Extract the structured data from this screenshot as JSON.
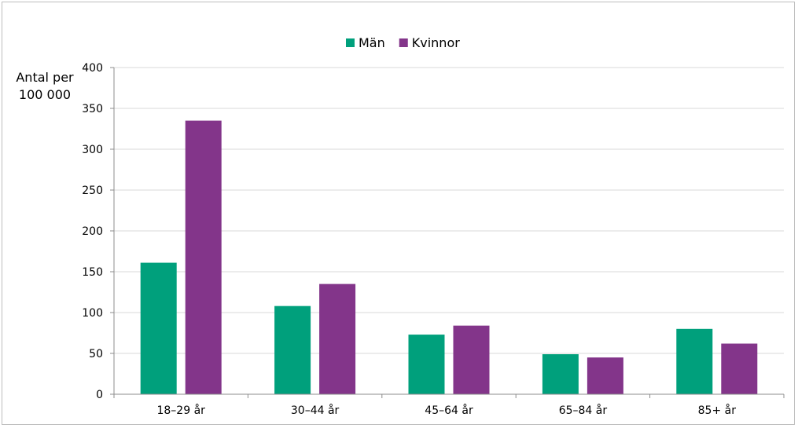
{
  "chart_data": {
    "type": "bar",
    "categories": [
      "18–29 år",
      "30–44 år",
      "45–64 år",
      "65–84 år",
      "85+ år"
    ],
    "series": [
      {
        "name": "Män",
        "color": "#00a07c",
        "values": [
          161,
          108,
          73,
          49,
          80
        ]
      },
      {
        "name": "Kvinnor",
        "color": "#83358a",
        "values": [
          335,
          135,
          84,
          45,
          62
        ]
      }
    ],
    "ylabel_lines": [
      "Antal per",
      "100 000"
    ],
    "yticks": [
      0,
      50,
      100,
      150,
      200,
      250,
      300,
      350,
      400
    ],
    "ylim": [
      0,
      400
    ],
    "grid": true,
    "legend_position": "top-center"
  }
}
